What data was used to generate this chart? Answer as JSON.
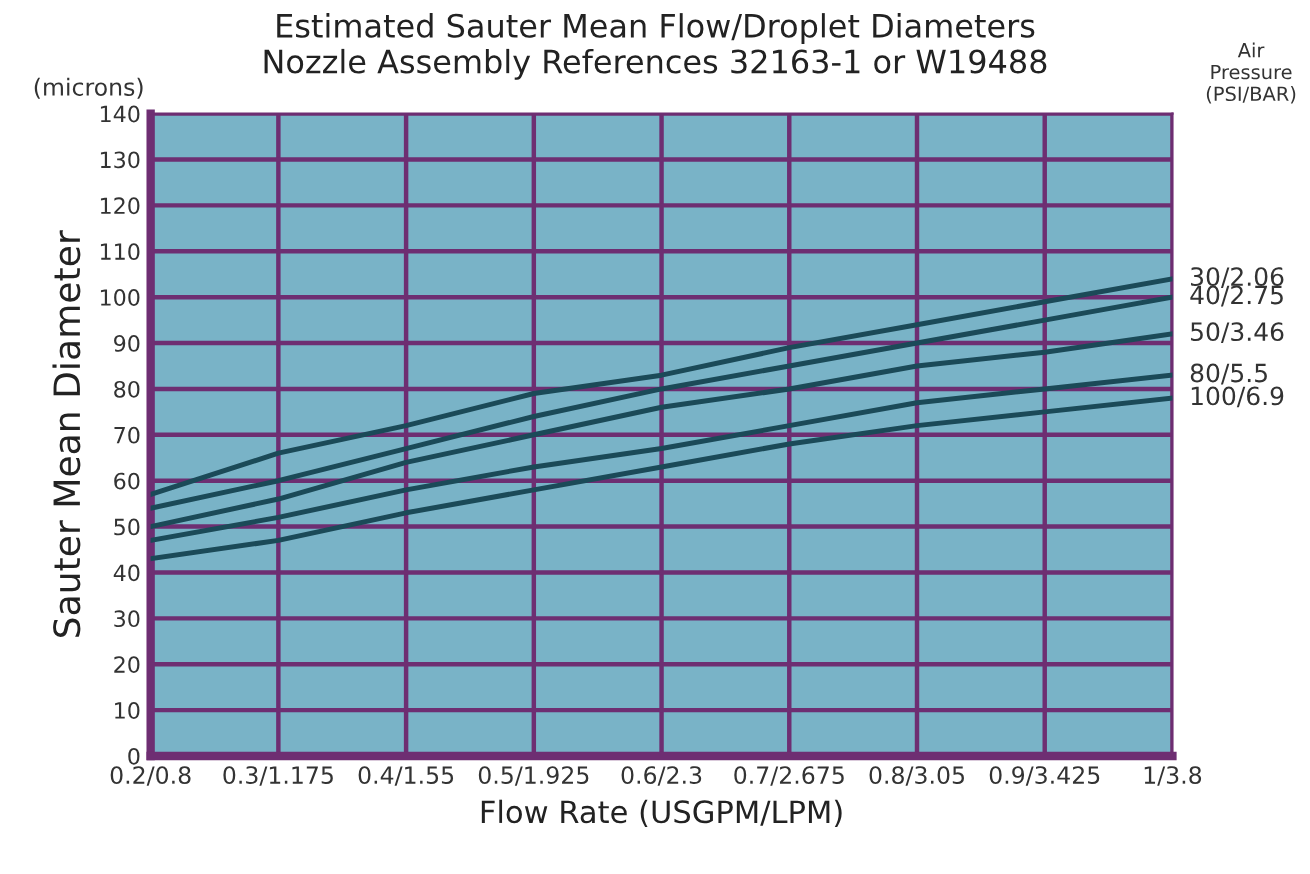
{
  "chart_data": {
    "type": "line",
    "title": "Estimated Sauter Mean Flow/Droplet Diameters\nNozzle Assembly References 32163-1 or W19488",
    "xlabel": "Flow Rate (USGPM/LPM)",
    "ylabel": "Sauter Mean Diameter",
    "legend_title": "Air\nPressure\n(PSI/BAR)",
    "annotations": [
      "(microns)"
    ],
    "categories": [
      "0.2/0.8",
      "0.3/1.175",
      "0.4/1.55",
      "0.5/1.925",
      "0.6/2.3",
      "0.7/2.675",
      "0.8/3.05",
      "0.9/3.425",
      "1/3.8"
    ],
    "series": [
      {
        "name": "30/2.06",
        "color": "#1b4a58",
        "values": [
          57,
          66,
          72,
          79,
          83,
          89,
          94,
          99,
          104
        ]
      },
      {
        "name": "40/2.75",
        "color": "#1b4a58",
        "values": [
          54,
          60,
          67,
          74,
          80,
          85,
          90,
          95,
          100
        ]
      },
      {
        "name": "50/3.46",
        "color": "#1b4a58",
        "values": [
          50,
          56,
          64,
          70,
          76,
          80,
          85,
          88,
          92
        ]
      },
      {
        "name": "80/5.5",
        "color": "#1b4a58",
        "values": [
          47,
          52,
          58,
          63,
          67,
          72,
          77,
          80,
          83
        ]
      },
      {
        "name": "100/6.9",
        "color": "#1b4a58",
        "values": [
          43,
          47,
          53,
          58,
          63,
          68,
          72,
          75,
          78
        ]
      }
    ],
    "ylim": [
      0,
      140
    ],
    "yticks": [
      0,
      10,
      20,
      30,
      40,
      50,
      60,
      70,
      80,
      90,
      100,
      110,
      120,
      130,
      140
    ],
    "grid": true,
    "legend": "right",
    "marker": "none",
    "line_style": "solid"
  }
}
